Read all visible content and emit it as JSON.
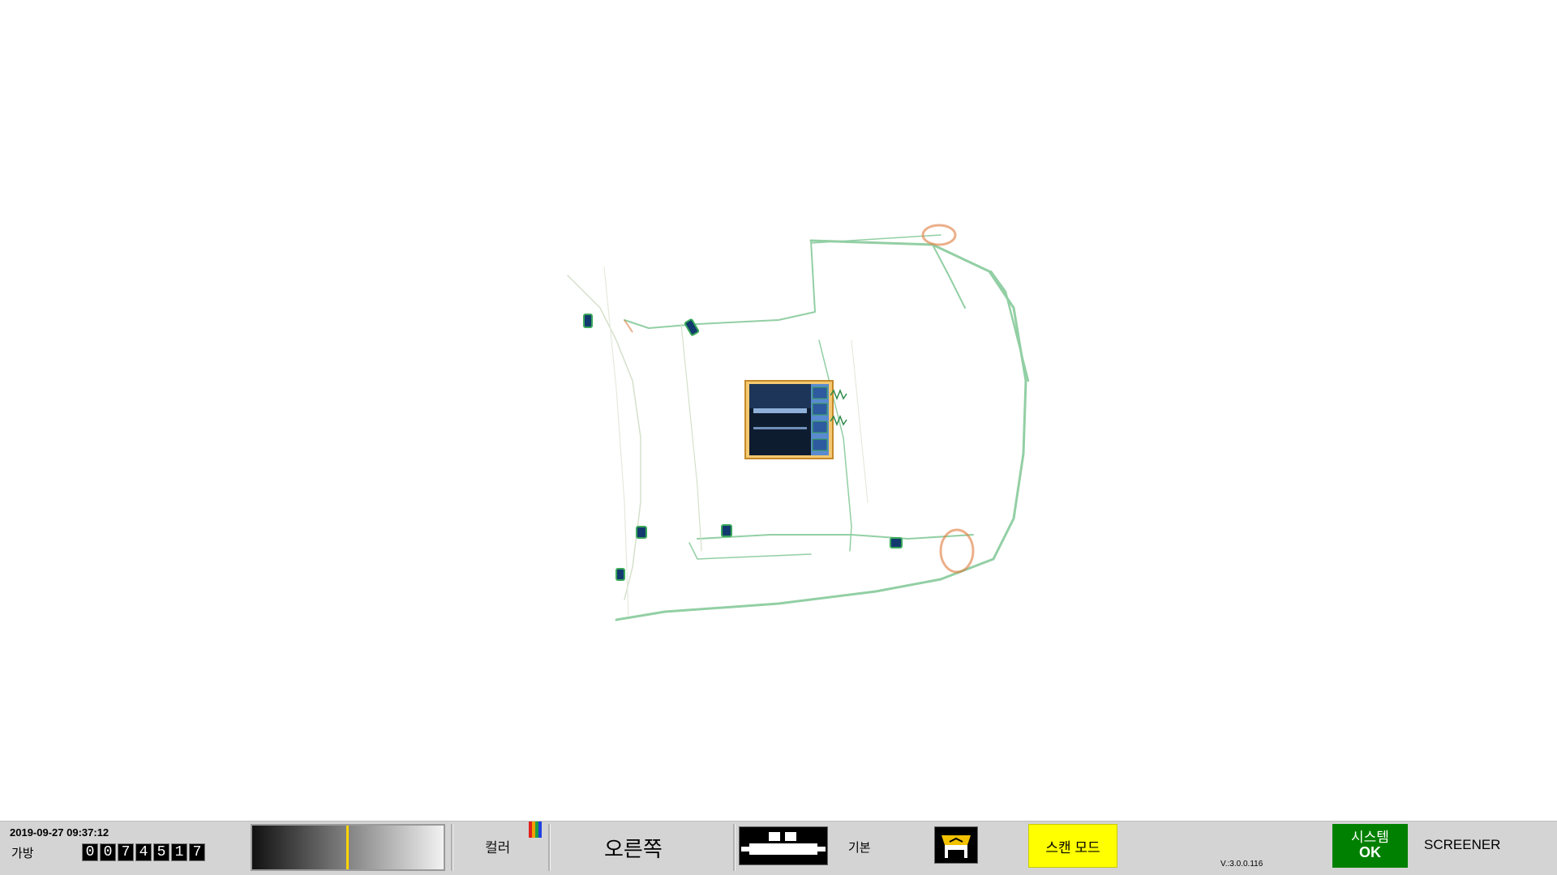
{
  "viewer": {
    "image": "x-ray-bag-scan",
    "colors": {
      "organic": "#3aa85a",
      "inorganic": "#e07a3a",
      "metal": "#123a6e",
      "background": "#ffffff"
    }
  },
  "status_bar": {
    "datetime": "2019-09-27 09:37:12",
    "bag_label": "가방",
    "bag_count_digits": [
      "0",
      "0",
      "7",
      "4",
      "5",
      "1",
      "7"
    ],
    "density_level": 0.49,
    "color_label": "컬러",
    "color_icon": "rgb-bars-icon",
    "direction_label": "오른쪽",
    "belt_icon": "conveyor-belt-icon",
    "mode_label": "기본",
    "profile_icon": "operator-seat-icon",
    "scan_mode_label": "스캔 모드",
    "version": "V.:3.0.0.116",
    "system_status_label": "시스템",
    "system_status_value": "OK",
    "user_role": "SCREENER",
    "accent_colors": {
      "scan_mode": "#ffff00",
      "system_ok": "#008000",
      "level_marker": "#ffd400"
    }
  }
}
